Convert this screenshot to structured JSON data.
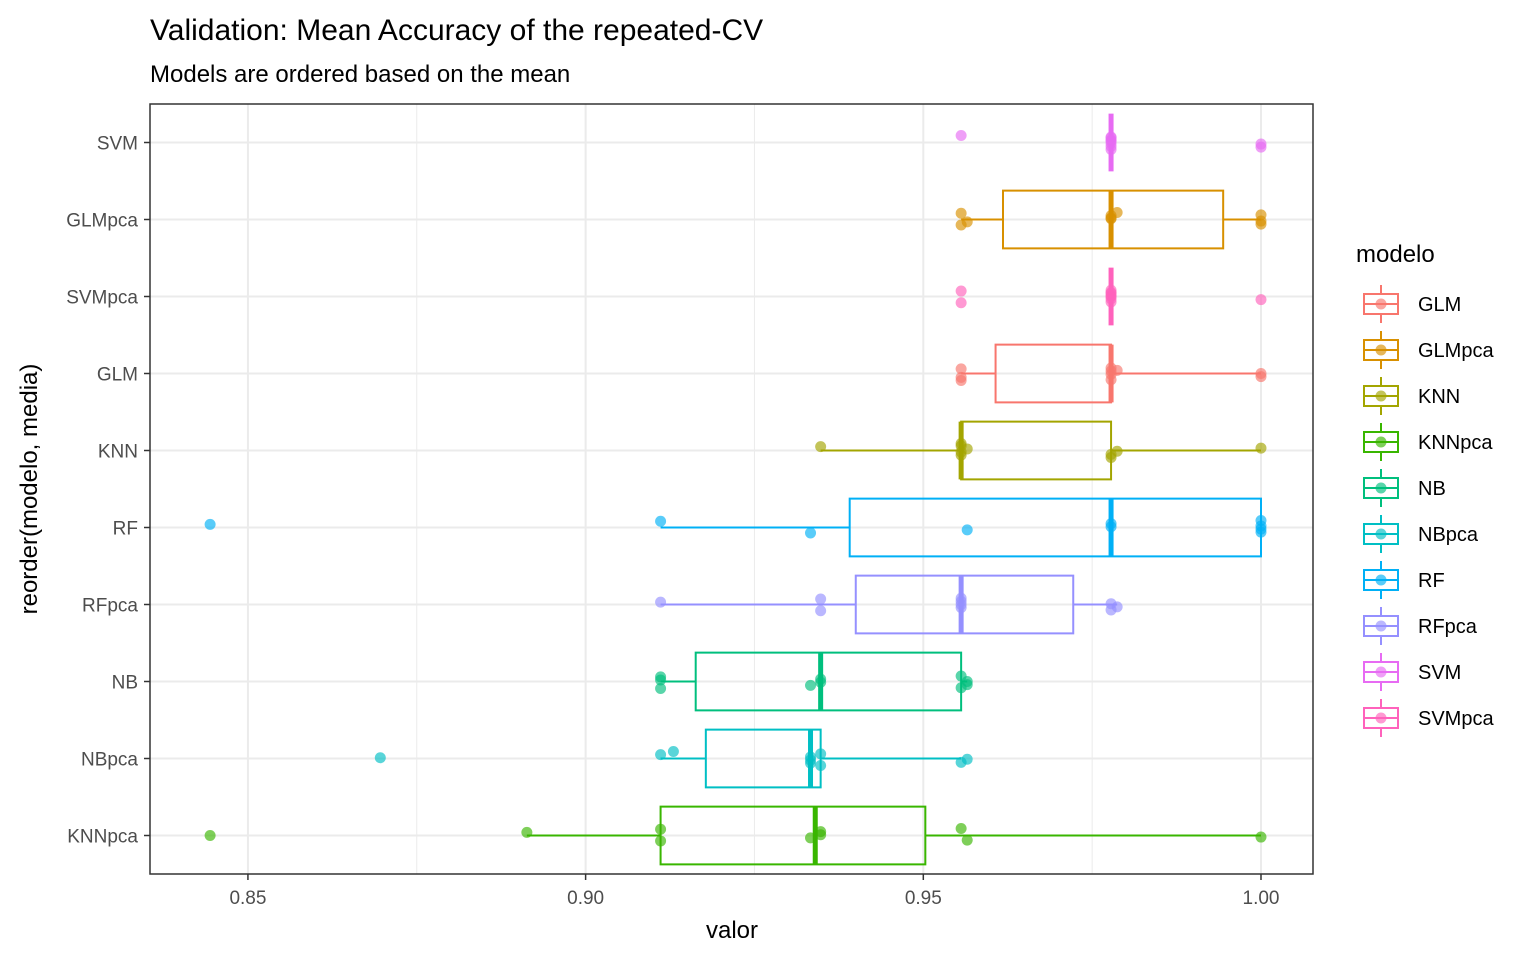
{
  "chart_data": {
    "type": "boxplot",
    "title": "Validation: Mean Accuracy of the repeated-CV",
    "subtitle": "Models are ordered based on the mean",
    "xlabel": "valor",
    "ylabel": "reorder(modelo, media)",
    "xlim": [
      0.8355,
      1.0077
    ],
    "x_ticks": [
      0.85,
      0.9,
      0.95,
      1.0
    ],
    "x_tick_labels": [
      "0.85",
      "0.90",
      "0.95",
      "1.00"
    ],
    "grid": true,
    "legend": {
      "title": "modelo",
      "placement": "right",
      "entries": [
        "GLM",
        "GLMpca",
        "KNN",
        "KNNpca",
        "NB",
        "NBpca",
        "RF",
        "RFpca",
        "SVM",
        "SVMpca"
      ]
    },
    "colors": {
      "GLM": "#F8766D",
      "GLMpca": "#D89000",
      "KNN": "#A3A500",
      "KNNpca": "#39B600",
      "NB": "#00BF7D",
      "NBpca": "#00BFC4",
      "RF": "#00B0F6",
      "RFpca": "#9590FF",
      "SVM": "#E76BF3",
      "SVMpca": "#FF62BC"
    },
    "categories_top_to_bottom": [
      "SVM",
      "GLMpca",
      "SVMpca",
      "GLM",
      "KNN",
      "RF",
      "RFpca",
      "NB",
      "NBpca",
      "KNNpca"
    ],
    "series": [
      {
        "name": "SVM",
        "box": {
          "q1": 0.9778,
          "median": 0.9778,
          "q3": 0.9778,
          "whisker_low": 0.9778,
          "whisker_high": 0.9778
        },
        "points": [
          0.9556,
          1.0,
          1.0,
          0.9778,
          0.9778,
          0.9778,
          0.9778,
          0.9778,
          0.9778,
          0.9778
        ]
      },
      {
        "name": "GLMpca",
        "box": {
          "q1": 0.9618,
          "median": 0.9778,
          "q3": 0.9944,
          "whisker_low": 0.9556,
          "whisker_high": 1.0
        },
        "points": [
          0.9556,
          0.9556,
          0.9565,
          0.9778,
          0.9778,
          0.9787,
          1.0,
          1.0,
          0.9778,
          1.0
        ]
      },
      {
        "name": "SVMpca",
        "box": {
          "q1": 0.9778,
          "median": 0.9778,
          "q3": 0.9778,
          "whisker_low": 0.9778,
          "whisker_high": 0.9778
        },
        "points": [
          0.9556,
          0.9556,
          1.0,
          0.9778,
          0.9778,
          0.9778,
          0.9778,
          0.9778,
          0.9778,
          0.9778
        ]
      },
      {
        "name": "GLM",
        "box": {
          "q1": 0.9607,
          "median": 0.9778,
          "q3": 0.9778,
          "whisker_low": 0.9556,
          "whisker_high": 1.0
        },
        "points": [
          0.9556,
          0.9556,
          0.9556,
          0.9778,
          0.9778,
          0.9778,
          0.9778,
          1.0,
          1.0,
          0.9787
        ]
      },
      {
        "name": "KNN",
        "box": {
          "q1": 0.9556,
          "median": 0.9556,
          "q3": 0.9778,
          "whisker_low": 0.9348,
          "whisker_high": 1.0
        },
        "points": [
          0.9348,
          0.9556,
          0.9556,
          0.9556,
          0.9565,
          0.9556,
          0.9778,
          0.9778,
          0.9787,
          1.0
        ]
      },
      {
        "name": "RF",
        "box": {
          "q1": 0.9391,
          "median": 0.9778,
          "q3": 1.0,
          "whisker_low": 0.9111,
          "whisker_high": 1.0
        },
        "points": [
          0.8444,
          0.9111,
          0.9333,
          0.9565,
          0.9778,
          0.9778,
          1.0,
          1.0,
          1.0,
          1.0
        ]
      },
      {
        "name": "RFpca",
        "box": {
          "q1": 0.94,
          "median": 0.9556,
          "q3": 0.9722,
          "whisker_low": 0.9111,
          "whisker_high": 0.9787
        },
        "points": [
          0.9111,
          0.9348,
          0.9348,
          0.9556,
          0.9556,
          0.9556,
          0.9556,
          0.9778,
          0.9787,
          0.9778
        ]
      },
      {
        "name": "NB",
        "box": {
          "q1": 0.9163,
          "median": 0.9348,
          "q3": 0.9556,
          "whisker_low": 0.9111,
          "whisker_high": 0.9565
        },
        "points": [
          0.9111,
          0.9111,
          0.9111,
          0.9333,
          0.9348,
          0.9348,
          0.9556,
          0.9556,
          0.9565,
          0.9565
        ]
      },
      {
        "name": "NBpca",
        "box": {
          "q1": 0.9178,
          "median": 0.9333,
          "q3": 0.9348,
          "whisker_low": 0.9111,
          "whisker_high": 0.9556
        },
        "points": [
          0.8696,
          0.9111,
          0.913,
          0.9333,
          0.9333,
          0.9333,
          0.9348,
          0.9348,
          0.9556,
          0.9565
        ]
      },
      {
        "name": "KNNpca",
        "box": {
          "q1": 0.9111,
          "median": 0.934,
          "q3": 0.9503,
          "whisker_low": 0.8913,
          "whisker_high": 1.0
        },
        "points": [
          0.8444,
          0.8913,
          0.9111,
          0.9111,
          0.9333,
          0.9348,
          0.9348,
          0.9556,
          0.9565,
          1.0
        ]
      }
    ]
  }
}
